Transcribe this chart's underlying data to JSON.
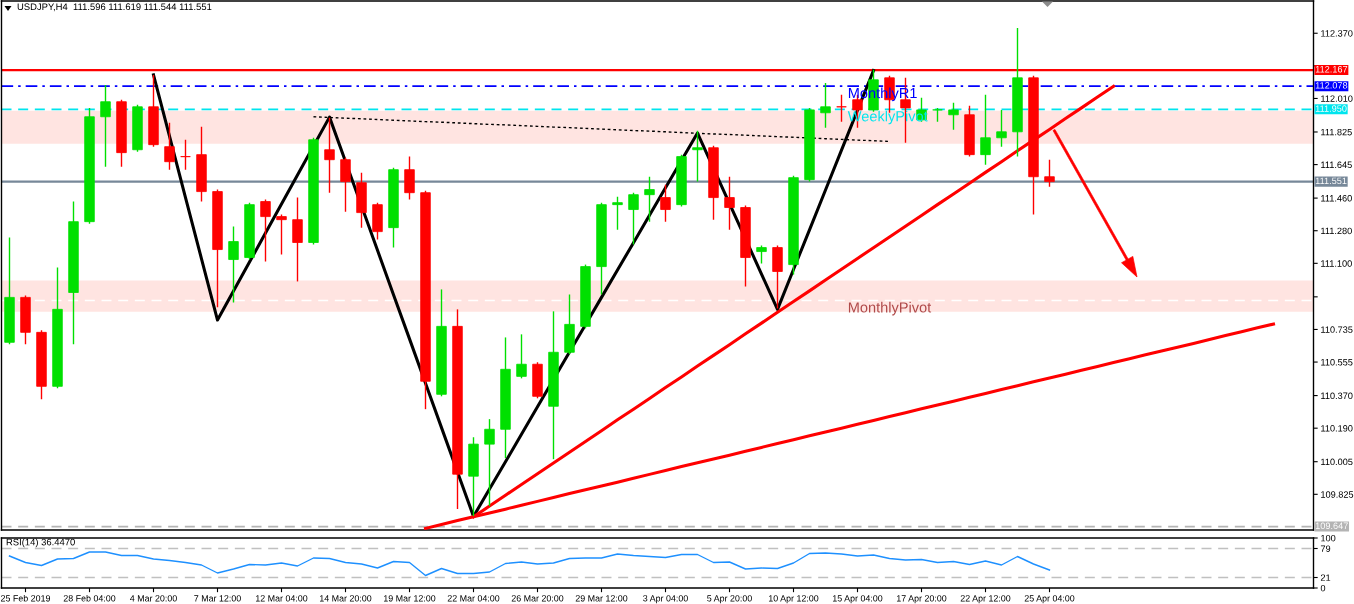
{
  "chart_data": [
    {
      "type": "candlestick",
      "title": "USDJPY,H4  111.596 111.619 111.544 111.551",
      "categories": [
        null,
        null,
        null,
        null,
        null,
        null,
        null,
        null,
        null,
        null,
        null,
        null,
        null,
        null,
        null,
        null,
        null,
        null,
        null,
        null,
        null,
        null,
        null,
        null,
        null,
        null,
        null,
        null,
        null,
        null,
        null,
        null,
        null,
        null,
        null,
        null,
        null,
        null,
        null,
        null,
        null,
        null,
        null,
        null,
        null,
        null,
        null,
        null,
        null,
        null,
        null,
        null,
        null,
        null,
        null,
        null,
        null,
        null,
        null,
        null,
        null,
        null,
        null,
        null,
        null,
        null,
        null,
        null,
        null,
        null,
        null,
        null,
        null,
        null,
        null,
        null,
        null,
        null,
        null,
        null,
        null,
        null
      ],
      "ohlc": [
        [
          110.664,
          111.242,
          110.653,
          110.912
        ],
        [
          110.912,
          110.923,
          110.653,
          110.719
        ],
        [
          110.719,
          110.73,
          110.35,
          110.421
        ],
        [
          110.421,
          111.077,
          110.41,
          110.846
        ],
        [
          110.939,
          111.441,
          110.653,
          111.33
        ],
        [
          111.33,
          111.958,
          111.319,
          111.909
        ],
        [
          111.909,
          112.085,
          111.633,
          111.992
        ],
        [
          111.992,
          112.003,
          111.633,
          111.711
        ],
        [
          111.727,
          111.975,
          111.716,
          111.964
        ],
        [
          111.964,
          112.14,
          111.744,
          111.755
        ],
        [
          111.744,
          111.876,
          111.617,
          111.661
        ],
        [
          111.689,
          111.782,
          111.617,
          111.689
        ],
        [
          111.7,
          111.854,
          111.441,
          111.496
        ],
        [
          111.496,
          111.507,
          110.857,
          111.176
        ],
        [
          111.121,
          111.303,
          110.884,
          111.22
        ],
        [
          111.132,
          111.435,
          111.121,
          111.424
        ],
        [
          111.441,
          111.452,
          111.11,
          111.358
        ],
        [
          111.358,
          111.369,
          111.149,
          111.341
        ],
        [
          111.341,
          111.463,
          111.0,
          111.215
        ],
        [
          111.215,
          111.793,
          111.204,
          111.782
        ],
        [
          111.727,
          111.903,
          111.49,
          111.672
        ],
        [
          111.672,
          111.683,
          111.385,
          111.551
        ],
        [
          111.545,
          111.6,
          111.297,
          111.38
        ],
        [
          111.424,
          111.435,
          111.231,
          111.275
        ],
        [
          111.297,
          111.628,
          111.187,
          111.617
        ],
        [
          111.617,
          111.689,
          111.452,
          111.49
        ],
        [
          111.49,
          111.501,
          110.295,
          110.449
        ],
        [
          110.377,
          110.956,
          110.366,
          110.752
        ],
        [
          110.752,
          110.846,
          109.744,
          109.936
        ],
        [
          109.925,
          110.14,
          109.705,
          110.102
        ],
        [
          110.102,
          110.24,
          109.76,
          110.184
        ],
        [
          110.184,
          110.691,
          110.025,
          110.515
        ],
        [
          110.476,
          110.708,
          110.465,
          110.543
        ],
        [
          110.543,
          110.554,
          110.355,
          110.366
        ],
        [
          110.311,
          110.835,
          110.019,
          110.609
        ],
        [
          110.609,
          110.928,
          110.598,
          110.763
        ],
        [
          110.752,
          111.093,
          110.741,
          111.082
        ],
        [
          111.082,
          111.435,
          110.928,
          111.424
        ],
        [
          111.424,
          111.468,
          111.286,
          111.435
        ],
        [
          111.397,
          111.49,
          111.204,
          111.479
        ],
        [
          111.479,
          111.578,
          111.33,
          111.507
        ],
        [
          111.463,
          111.534,
          111.33,
          111.397
        ],
        [
          111.424,
          111.7,
          111.413,
          111.689
        ],
        [
          111.727,
          111.832,
          111.551,
          111.738
        ],
        [
          111.738,
          111.749,
          111.341,
          111.463
        ],
        [
          111.463,
          111.578,
          111.286,
          111.408
        ],
        [
          111.408,
          111.419,
          110.972,
          111.132
        ],
        [
          111.165,
          111.198,
          111.099,
          111.187
        ],
        [
          111.187,
          111.198,
          110.851,
          111.055
        ],
        [
          111.093,
          111.584,
          111.038,
          111.573
        ],
        [
          111.562,
          111.958,
          111.551,
          111.947
        ],
        [
          111.931,
          112.096,
          111.848,
          111.964
        ],
        [
          111.964,
          112.03,
          111.881,
          111.964
        ],
        [
          112.003,
          112.03,
          111.848,
          111.947
        ],
        [
          111.947,
          112.168,
          111.936,
          112.113
        ],
        [
          112.124,
          112.135,
          111.931,
          112.003
        ],
        [
          112.003,
          112.124,
          111.766,
          111.958
        ],
        [
          111.892,
          112.014,
          111.881,
          111.947
        ],
        [
          111.947,
          111.958,
          111.881,
          111.947
        ],
        [
          111.92,
          111.986,
          111.837,
          111.947
        ],
        [
          111.92,
          111.97,
          111.689,
          111.7
        ],
        [
          111.7,
          112.03,
          111.644,
          111.793
        ],
        [
          111.793,
          111.947,
          111.744,
          111.826
        ],
        [
          111.826,
          112.399,
          111.689,
          112.124
        ],
        [
          112.124,
          112.135,
          111.369,
          111.578
        ],
        [
          111.578,
          111.672,
          111.523,
          111.551
        ],
        null,
        null,
        null,
        null,
        null,
        null,
        null,
        null,
        null,
        null,
        null,
        null,
        null,
        null,
        null,
        null
      ],
      "colors": [
        "#00e000",
        "#ff0000",
        "#ff0000",
        "#00e000",
        "#00e000",
        "#00e000",
        "#00e000",
        "#ff0000",
        "#00e000",
        "#ff0000",
        "#ff0000",
        "#ff0000",
        "#ff0000",
        "#ff0000",
        "#00e000",
        "#00e000",
        "#ff0000",
        "#ff0000",
        "#ff0000",
        "#00e000",
        "#ff0000",
        "#ff0000",
        "#ff0000",
        "#ff0000",
        "#00e000",
        "#ff0000",
        "#ff0000",
        "#00e000",
        "#ff0000",
        "#00e000",
        "#00e000",
        "#00e000",
        "#00e000",
        "#ff0000",
        "#00e000",
        "#00e000",
        "#00e000",
        "#00e000",
        "#00e000",
        "#00e000",
        "#00e000",
        "#ff0000",
        "#00e000",
        "#00e000",
        "#ff0000",
        "#ff0000",
        "#ff0000",
        "#00e000",
        "#ff0000",
        "#00e000",
        "#00e000",
        "#00e000",
        "#ff0000",
        "#ff0000",
        "#00e000",
        "#ff0000",
        "#ff0000",
        "#00e000",
        "#00e000",
        "#00e000",
        "#ff0000",
        "#00e000",
        "#00e000",
        "#00e000",
        "#ff0000",
        "#ff0000",
        null,
        null,
        null,
        null,
        null,
        null,
        null,
        null,
        null,
        null,
        null,
        null,
        null,
        null,
        null,
        null
      ],
      "series": [
        {
          "type": "line",
          "color": "#000000",
          "values": [
            null,
            null,
            null,
            null,
            null,
            null,
            null,
            null,
            null,
            112.14,
            111.802,
            111.463,
            111.125,
            110.787,
            110.947,
            111.107,
            111.267,
            111.427,
            111.587,
            null,
            111.907,
            111.662,
            null,
            111.172,
            110.927,
            110.683,
            110.438,
            110.193,
            109.948,
            109.703,
            109.854,
            110.005,
            110.156,
            110.308,
            null,
            110.61,
            110.761,
            110.912,
            111.063,
            111.214,
            111.365,
            111.517,
            null,
            111.819,
            null,
            111.43,
            null,
            111.041,
            110.846,
            111.066,
            111.285,
            111.505,
            111.725,
            111.945,
            112.164,
            null,
            null,
            null,
            null,
            null,
            null,
            null,
            null,
            null,
            null,
            null,
            null,
            null,
            null,
            null,
            null,
            null,
            null,
            null,
            null,
            null,
            null,
            null,
            null,
            null,
            null,
            null
          ]
        },
        {
          "type": "line",
          "color": "#000000",
          "line_style": "dotted",
          "values": [
            null,
            null,
            null,
            null,
            null,
            null,
            null,
            null,
            null,
            null,
            null,
            null,
            null,
            null,
            null,
            null,
            null,
            null,
            null,
            111.909,
            111.905,
            111.901,
            111.898,
            111.894,
            111.89,
            111.886,
            111.882,
            111.879,
            111.875,
            111.871,
            111.867,
            111.864,
            111.86,
            111.856,
            111.852,
            111.849,
            111.845,
            111.841,
            111.837,
            111.833,
            111.83,
            111.826,
            111.822,
            111.818,
            111.814,
            111.811,
            111.807,
            111.803,
            111.799,
            111.796,
            null,
            111.788,
            111.784,
            111.78,
            111.777,
            111.773,
            null,
            null,
            null,
            null,
            null,
            null,
            null,
            null,
            null,
            null,
            null,
            null,
            null,
            null,
            null,
            null,
            null,
            null,
            null,
            null,
            null,
            null,
            null,
            null,
            null,
            null
          ]
        },
        {
          "type": "line",
          "color": "#ff0000",
          "values": [
            null,
            null,
            null,
            null,
            null,
            null,
            null,
            null,
            null,
            null,
            null,
            null,
            null,
            null,
            null,
            null,
            null,
            null,
            null,
            null,
            null,
            null,
            null,
            null,
            null,
            null,
            null,
            null,
            null,
            109.701,
            109.76,
            109.82,
            109.879,
            109.939,
            109.998,
            110.057,
            110.117,
            110.176,
            110.236,
            110.295,
            110.354,
            110.414,
            110.473,
            110.533,
            110.592,
            110.651,
            110.711,
            110.77,
            110.83,
            110.889,
            110.948,
            111.008,
            111.067,
            111.127,
            111.186,
            111.245,
            111.305,
            111.364,
            111.424,
            111.483,
            111.542,
            111.602,
            111.661,
            111.721,
            111.78,
            111.839,
            111.899,
            111.958,
            112.018,
            112.077,
            null,
            null,
            null,
            null,
            null,
            null,
            null,
            null,
            null,
            null,
            null,
            null
          ]
        },
        {
          "type": "line",
          "color": "#ff0000",
          "values": [
            null,
            null,
            null,
            null,
            null,
            null,
            null,
            null,
            null,
            null,
            null,
            null,
            null,
            null,
            null,
            null,
            null,
            null,
            null,
            null,
            null,
            null,
            null,
            null,
            null,
            null,
            109.637,
            109.658,
            109.68,
            109.701,
            109.722,
            109.743,
            109.765,
            109.786,
            109.807,
            109.829,
            109.85,
            109.871,
            109.892,
            109.914,
            109.935,
            109.956,
            109.978,
            109.999,
            110.02,
            110.041,
            110.063,
            110.084,
            110.105,
            110.126,
            110.148,
            110.169,
            110.19,
            110.212,
            110.233,
            110.254,
            110.275,
            110.297,
            110.318,
            110.339,
            110.361,
            110.382,
            110.403,
            110.424,
            110.446,
            110.467,
            110.488,
            110.51,
            110.531,
            110.552,
            110.573,
            110.595,
            110.616,
            110.637,
            110.658,
            110.68,
            110.701,
            110.722,
            110.744,
            110.765,
            null,
            null
          ]
        }
      ],
      "bands": [
        {
          "axis": "y",
          "from": 111.76,
          "to": 111.942,
          "color": "#ffe4e1"
        },
        {
          "axis": "y",
          "from": 110.833,
          "to": 111.005,
          "color": "#ffe4e1"
        }
      ],
      "ref_lines": [
        {
          "axis": "y",
          "value": 112.167,
          "label": "112.167",
          "color": "#ff0000",
          "line_style": "solid"
        },
        {
          "axis": "y",
          "value": 112.078,
          "label": "112.078",
          "color": "#0000ff",
          "line_style": "dashdot"
        },
        {
          "axis": "y",
          "value": 111.95,
          "label": "111.950",
          "color": "#00e5ee",
          "line_style": "dashed"
        },
        {
          "axis": "y",
          "value": 111.551,
          "label": "111.551",
          "color": "#778899",
          "line_style": "solid"
        },
        {
          "axis": "y",
          "value": 110.895,
          "color": "#ffffff",
          "line_style": "dashed"
        },
        {
          "axis": "y",
          "value": 109.647,
          "label": "109.647",
          "color": "#b4b4b4",
          "line_style": "dashed"
        }
      ],
      "annotations": [
        {
          "text": "MonthlyR1",
          "y": 112.078
        },
        {
          "text": "WeeklyPivot",
          "y": 111.95
        },
        {
          "text": "MonthlyPivot",
          "y": 110.895
        }
      ],
      "ylim": [
        109.628,
        112.548
      ],
      "yticks": [
        {
          "value": 112.37,
          "label": "112.370"
        },
        {
          "value": 112.19,
          "label": null
        },
        {
          "value": 112.01,
          "label": "112.010"
        },
        {
          "value": 111.825,
          "label": "111.825"
        },
        {
          "value": 111.645,
          "label": "111.645"
        },
        {
          "value": 111.46,
          "label": "111.460"
        },
        {
          "value": 111.28,
          "label": "111.280"
        },
        {
          "value": 111.1,
          "label": "111.100"
        },
        {
          "value": 110.915,
          "label": null
        },
        {
          "value": 110.735,
          "label": "110.735"
        },
        {
          "value": 110.555,
          "label": "110.555"
        },
        {
          "value": 110.37,
          "label": "110.370"
        },
        {
          "value": 110.19,
          "label": "110.190"
        },
        {
          "value": 110.005,
          "label": "110.005"
        },
        {
          "value": 109.825,
          "label": "109.825"
        }
      ],
      "tick_labels": "y"
    },
    {
      "type": "line",
      "title": "RSI(14) 36.4470",
      "categories": [
        null,
        "25 Feb 2019",
        null,
        null,
        null,
        "28 Feb 04:00",
        null,
        null,
        null,
        "4 Mar 20:00",
        null,
        null,
        null,
        "7 Mar 12:00",
        null,
        null,
        null,
        "12 Mar 04:00",
        null,
        null,
        null,
        "14 Mar 20:00",
        null,
        null,
        null,
        "19 Mar 12:00",
        null,
        null,
        null,
        "22 Mar 04:00",
        null,
        null,
        null,
        "26 Mar 20:00",
        null,
        null,
        null,
        "29 Mar 12:00",
        null,
        null,
        null,
        "3 Apr 04:00",
        null,
        null,
        null,
        "5 Apr 20:00",
        null,
        null,
        null,
        "10 Apr 12:00",
        null,
        null,
        null,
        "15 Apr 04:00",
        null,
        null,
        null,
        "17 Apr 20:00",
        null,
        null,
        null,
        "22 Apr 12:00",
        null,
        null,
        null,
        "25 Apr 04:00",
        null,
        null,
        null,
        null,
        null,
        null,
        null,
        null,
        null,
        null,
        null,
        null,
        null,
        null,
        null,
        null
      ],
      "series": [
        {
          "color": "#1e90ff",
          "values": [
            64,
            51,
            45,
            58,
            59,
            72,
            72,
            65,
            65,
            58,
            55,
            51,
            46,
            30,
            38,
            47,
            46,
            50,
            44,
            60,
            59,
            51,
            48,
            40,
            53,
            51,
            25,
            39,
            29,
            29,
            32,
            49,
            52,
            48,
            50,
            59,
            60,
            60,
            68,
            65,
            63,
            61,
            67,
            67,
            51,
            52,
            38,
            40,
            39,
            50,
            69,
            70,
            68,
            64,
            66,
            59,
            56,
            57,
            51,
            53,
            47,
            54,
            46,
            63,
            48,
            36,
            null,
            null,
            null,
            null,
            null,
            null,
            null,
            null,
            null,
            null,
            null,
            null,
            null,
            null,
            null,
            null
          ]
        }
      ],
      "ref_lines": [
        {
          "axis": "y",
          "value": 79,
          "color": "#c0c0c0",
          "line_style": "dashed"
        },
        {
          "axis": "y",
          "value": 21,
          "color": "#c0c0c0",
          "line_style": "dashed"
        }
      ],
      "ylim": [
        0,
        100
      ],
      "yticks": [
        0,
        21,
        79,
        100
      ]
    }
  ]
}
